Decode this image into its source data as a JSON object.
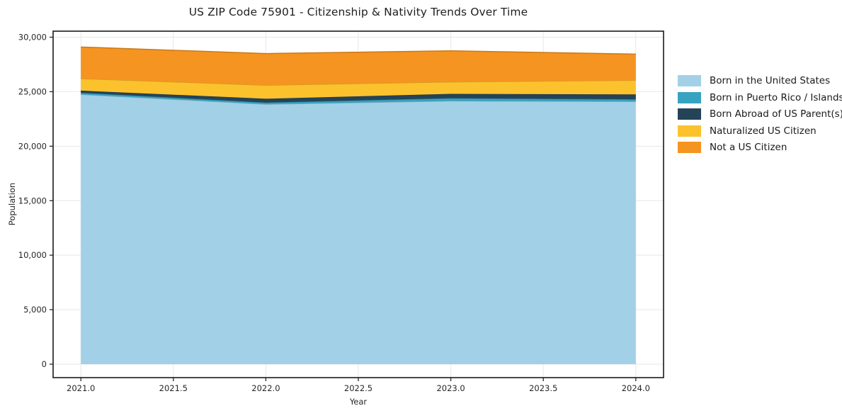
{
  "title": "US ZIP Code 75901 - Citizenship & Nativity Trends Over Time",
  "chart_data": {
    "type": "area",
    "stacked": true,
    "title": "US ZIP Code 75901 - Citizenship & Nativity Trends Over Time",
    "xlabel": "Year",
    "ylabel": "Population",
    "x": [
      2021,
      2022,
      2023,
      2024
    ],
    "series": [
      {
        "name": "Born in the United States",
        "color": "#a2d1e7",
        "values": [
          24750,
          23850,
          24150,
          24100
        ]
      },
      {
        "name": "Born in Puerto Rico / Islands",
        "color": "#37a3c1",
        "values": [
          150,
          150,
          250,
          200
        ]
      },
      {
        "name": "Born Abroad of US Parent(s)",
        "color": "#254358",
        "values": [
          200,
          350,
          400,
          450
        ]
      },
      {
        "name": "Naturalized US Citizen",
        "color": "#fcc22d",
        "values": [
          1100,
          1250,
          1100,
          1300
        ]
      },
      {
        "name": "Not a US Citizen",
        "color": "#f59420",
        "values": [
          2900,
          2900,
          2850,
          2400
        ]
      }
    ],
    "totals": [
      29100,
      28500,
      28750,
      28450
    ],
    "xlim": [
      2020.85,
      2024.15
    ],
    "ylim": [
      -1235,
      30553
    ],
    "xticks": {
      "values": [
        2021.0,
        2021.5,
        2022.0,
        2022.5,
        2023.0,
        2023.5,
        2024.0
      ],
      "labels": [
        "2021.0",
        "2021.5",
        "2022.0",
        "2022.5",
        "2023.0",
        "2023.5",
        "2024.0"
      ]
    },
    "yticks": {
      "values": [
        0,
        5000,
        10000,
        15000,
        20000,
        25000,
        30000
      ],
      "labels": [
        "0",
        "5,000",
        "10,000",
        "15,000",
        "20,000",
        "25,000",
        "30,000"
      ]
    },
    "grid": true,
    "grid_color": "#e7e7e7",
    "spine_color": "#1a1a1a",
    "tick_color": "#262626",
    "legend_position": "right",
    "legend_frame": false
  }
}
